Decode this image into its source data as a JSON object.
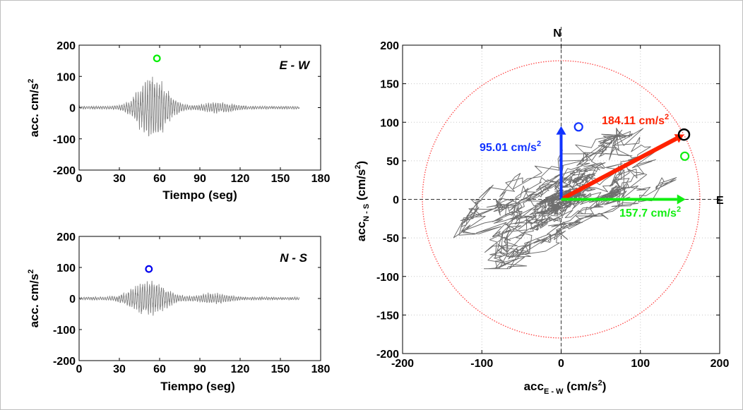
{
  "chart_data": [
    {
      "type": "line",
      "panel": "E-W time history",
      "annotation": "E - W",
      "xlabel": "Tiempo (seg)",
      "ylabel": "acc. cm/s",
      "ylabel_sup": "2",
      "xlim": [
        0,
        180
      ],
      "ylim": [
        -200,
        200
      ],
      "xticks": [
        0,
        30,
        60,
        90,
        120,
        150,
        180
      ],
      "yticks": [
        -200,
        -100,
        0,
        100,
        200
      ],
      "record_end": 164,
      "peak": {
        "x": 58,
        "y": 157.7,
        "color": "#00ee00"
      },
      "line_color": "#7f7f7f"
    },
    {
      "type": "line",
      "panel": "N-S time history",
      "annotation": "N - S",
      "xlabel": "Tiempo (seg)",
      "ylabel": "acc. cm/s",
      "ylabel_sup": "2",
      "xlim": [
        0,
        180
      ],
      "ylim": [
        -200,
        200
      ],
      "xticks": [
        0,
        30,
        60,
        90,
        120,
        150,
        180
      ],
      "yticks": [
        -200,
        -100,
        0,
        100,
        200
      ],
      "record_end": 164,
      "peak": {
        "x": 52,
        "y": 95.01,
        "color": "#0000ee"
      },
      "line_color": "#7f7f7f"
    },
    {
      "type": "scatter",
      "panel": "Orbit plot",
      "xlabel": "acc",
      "xlabel_sub": "E - W",
      "xlabel_unit": " (cm/s",
      "xlabel_sup": "2",
      "xlabel_close": ")",
      "ylabel": "acc",
      "ylabel_sub": "N - S",
      "ylabel_unit": " (cm/s",
      "ylabel_sup": "2",
      "ylabel_close": ")",
      "xlim": [
        -200,
        200
      ],
      "ylim": [
        -200,
        200
      ],
      "xticks": [
        -200,
        -100,
        0,
        100,
        200
      ],
      "yticks": [
        -200,
        -150,
        -100,
        -50,
        0,
        50,
        100,
        150,
        200
      ],
      "grid": true,
      "compass_n": "N",
      "compass_e": "E",
      "circle_radius": 175,
      "vectors": [
        {
          "name": "resultant",
          "dx": 155,
          "dy": 84,
          "color": "#ff2200",
          "label": "184.11 cm/s",
          "sup": "2"
        },
        {
          "name": "north-south",
          "dx": 0,
          "dy": 95,
          "color": "#1133ff",
          "label": "95.01 cm/s",
          "sup": "2"
        },
        {
          "name": "east-west",
          "dx": 157,
          "dy": 0,
          "color": "#11ee11",
          "label": "157.7 cm/s",
          "sup": "2"
        }
      ],
      "markers": [
        {
          "x": 155,
          "y": 84,
          "color": "#000000"
        },
        {
          "x": 22,
          "y": 94,
          "color": "#1133ff"
        },
        {
          "x": 156,
          "y": 56,
          "color": "#11ee11"
        }
      ],
      "orbit_color": "#6e6e6e",
      "circle_color": "#ff4444"
    }
  ]
}
